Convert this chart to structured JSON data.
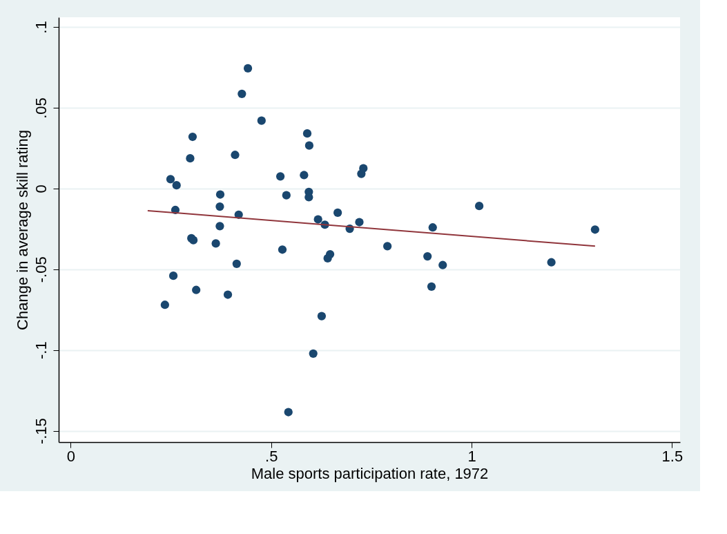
{
  "chart_data": {
    "type": "scatter",
    "xlabel": "Male sports participation rate, 1972",
    "ylabel": "Change in average skill rating",
    "xlim": [
      -0.03,
      1.52
    ],
    "ylim": [
      -0.157,
      0.106
    ],
    "xticks": [
      0,
      {
        "value": 0.5,
        "label": ".5"
      },
      1,
      1.5
    ],
    "yticks": [
      {
        "value": -0.15,
        "label": "-.15"
      },
      {
        "value": -0.1,
        "label": "-.1"
      },
      {
        "value": -0.05,
        "label": "-.05"
      },
      0,
      {
        "value": 0.05,
        "label": ".05"
      },
      {
        "value": 0.1,
        "label": ".1"
      }
    ],
    "grid": "y",
    "marker": "circle",
    "series": [
      {
        "color": "#1a476f",
        "x": [
          0.235,
          0.249,
          0.264,
          0.261,
          0.256,
          0.298,
          0.304,
          0.301,
          0.306,
          0.313,
          0.362,
          0.373,
          0.372,
          0.372,
          0.41,
          0.419,
          0.414,
          0.392,
          0.427,
          0.442,
          0.476,
          0.523,
          0.538,
          0.528,
          0.543,
          0.582,
          0.59,
          0.595,
          0.594,
          0.594,
          0.617,
          0.634,
          0.641,
          0.647,
          0.626,
          0.605,
          0.666,
          0.696,
          0.72,
          0.725,
          0.73,
          0.79,
          0.89,
          0.903,
          0.9,
          0.928,
          1.019,
          1.199,
          1.308
        ],
        "values": [
          -0.072,
          0.0058,
          0.002,
          -0.0133,
          -0.054,
          0.0187,
          0.032,
          -0.0308,
          -0.032,
          -0.0628,
          -0.034,
          -0.0037,
          -0.0112,
          -0.0233,
          0.0208,
          -0.0162,
          -0.0466,
          -0.0657,
          0.0586,
          0.0744,
          0.042,
          0.0075,
          -0.0042,
          -0.0378,
          -0.1384,
          0.0083,
          0.0341,
          0.0266,
          -0.0021,
          -0.0054,
          -0.0191,
          -0.0224,
          -0.0432,
          -0.0407,
          -0.079,
          -0.1022,
          -0.015,
          -0.0249,
          -0.0208,
          0.0091,
          0.0125,
          -0.0357,
          -0.042,
          -0.0241,
          -0.0607,
          -0.0474,
          -0.0108,
          -0.0457,
          -0.0254
        ]
      },
      {
        "type": "line",
        "marker": "none",
        "color": "#90353b",
        "x": [
          0.192,
          1.308
        ],
        "values": [
          -0.0137,
          -0.0357
        ]
      }
    ]
  }
}
